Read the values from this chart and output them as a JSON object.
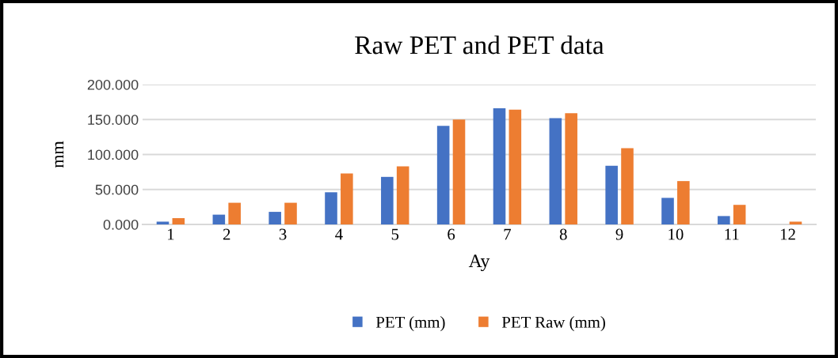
{
  "chart_data": {
    "type": "bar",
    "title": "Raw PET and PET data",
    "xlabel": "Ay",
    "ylabel": "mm",
    "categories": [
      "1",
      "2",
      "3",
      "4",
      "5",
      "6",
      "7",
      "8",
      "9",
      "10",
      "11",
      "12"
    ],
    "series": [
      {
        "name": "PET (mm)",
        "color": "#4472c4",
        "values": [
          4,
          14,
          18,
          46,
          68,
          141,
          166,
          152,
          84,
          38,
          12,
          null
        ]
      },
      {
        "name": "PET Raw (mm)",
        "color": "#ed7d31",
        "values": [
          9,
          31,
          31,
          73,
          83,
          150,
          164,
          159,
          109,
          62,
          28,
          4
        ]
      }
    ],
    "ylim": [
      0,
      200
    ],
    "yticks": [
      {
        "value": 0,
        "label": "0.000"
      },
      {
        "value": 50,
        "label": "50.000"
      },
      {
        "value": 100,
        "label": "100.000"
      },
      {
        "value": 150,
        "label": "150.000"
      },
      {
        "value": 200,
        "label": "200.000"
      }
    ],
    "grid": "y",
    "legend": "bottom"
  }
}
